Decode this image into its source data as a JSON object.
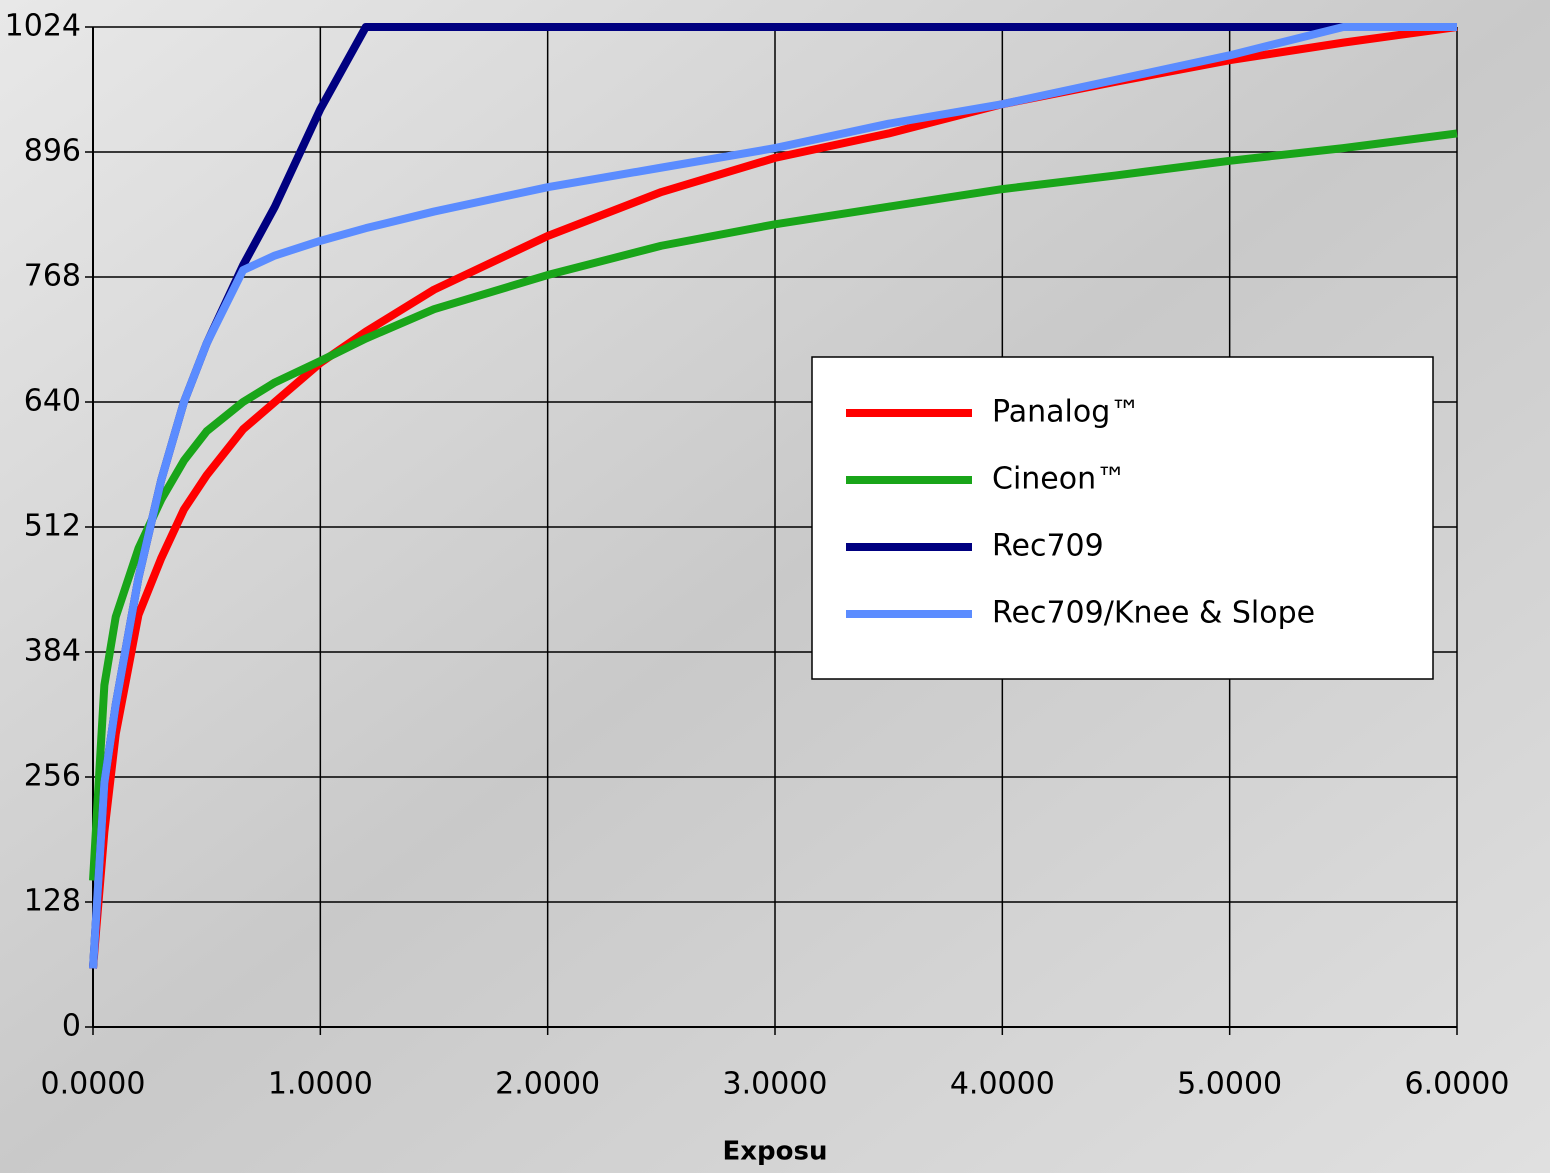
{
  "chart_data": {
    "type": "line",
    "xlabel": "Exposu",
    "x": [
      0,
      0.05,
      0.1,
      0.2,
      0.3,
      0.4,
      0.5,
      0.66,
      0.8,
      1.0,
      1.2,
      1.5,
      2.0,
      2.5,
      3.0,
      3.5,
      4.0,
      4.5,
      5.0,
      5.5,
      6.0
    ],
    "series": [
      {
        "name": "Panalog™",
        "color": "#ff0000",
        "values": [
          60,
          200,
          300,
          422,
          480,
          530,
          565,
          612,
          640,
          680,
          712,
          755,
          810,
          855,
          890,
          915,
          945,
          968,
          990,
          1008,
          1024
        ]
      },
      {
        "name": "Cineon™",
        "color": "#19a519",
        "values": [
          150,
          350,
          420,
          490,
          540,
          580,
          610,
          640,
          660,
          682,
          705,
          735,
          770,
          800,
          822,
          840,
          858,
          872,
          887,
          900,
          915
        ]
      },
      {
        "name": "Rec709",
        "color": "#000080",
        "values": [
          60,
          250,
          330,
          460,
          560,
          640,
          700,
          780,
          840,
          940,
          1024,
          1024,
          1024,
          1024,
          1024,
          1024,
          1024,
          1024,
          1024,
          1024,
          1024
        ]
      },
      {
        "name": "Rec709/Knee & Slope",
        "color": "#5b8cff",
        "values": [
          60,
          250,
          330,
          460,
          560,
          640,
          700,
          775,
          790,
          805,
          818,
          835,
          860,
          880,
          900,
          925,
          945,
          970,
          995,
          1024,
          1024
        ]
      }
    ],
    "xlim": [
      0,
      6
    ],
    "xticks": [
      {
        "value": 0,
        "label": "0.0000"
      },
      {
        "value": 1,
        "label": "1.0000"
      },
      {
        "value": 2,
        "label": "2.0000"
      },
      {
        "value": 3,
        "label": "3.0000"
      },
      {
        "value": 4,
        "label": "4.0000"
      },
      {
        "value": 5,
        "label": "5.0000"
      },
      {
        "value": 6,
        "label": "6.0000"
      }
    ],
    "ylim": [
      0,
      1024
    ],
    "yticks": [
      0,
      128,
      256,
      384,
      512,
      640,
      768,
      896,
      1024
    ],
    "grid": true,
    "legend": "right"
  }
}
